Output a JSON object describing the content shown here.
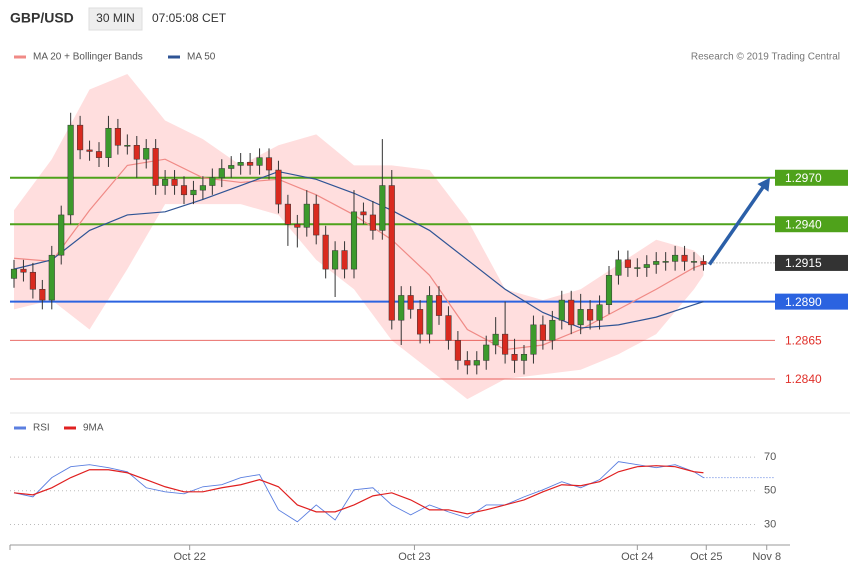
{
  "header": {
    "symbol": "GBP/USD",
    "interval": "30 MIN",
    "time": "07:05:08 CET"
  },
  "credit": "Research © 2019 Trading Central",
  "chart_data": [
    {
      "type": "candlestick",
      "up_color": "#3c9a2c",
      "down_color": "#d92a1f",
      "xlim": [
        0,
        81
      ],
      "ylim": [
        1.282,
        1.3059
      ],
      "candles": [
        [
          1.2905,
          1.2917,
          1.2899,
          1.2911
        ],
        [
          1.2911,
          1.2917,
          1.2903,
          1.2909
        ],
        [
          1.2909,
          1.2915,
          1.2892,
          1.2898
        ],
        [
          1.2898,
          1.2904,
          1.2885,
          1.2891
        ],
        [
          1.2891,
          1.2926,
          1.2885,
          1.292
        ],
        [
          1.292,
          1.2952,
          1.2914,
          1.2946
        ],
        [
          1.2946,
          1.3012,
          1.294,
          1.3004
        ],
        [
          1.3004,
          1.301,
          1.2982,
          1.2988
        ],
        [
          1.2988,
          1.2994,
          1.2981,
          1.2987
        ],
        [
          1.2987,
          1.2993,
          1.2977,
          1.2983
        ],
        [
          1.2983,
          1.301,
          1.2977,
          1.3002
        ],
        [
          1.3002,
          1.3008,
          1.2985,
          1.2991
        ],
        [
          1.2991,
          1.2998,
          1.2985,
          1.2991
        ],
        [
          1.2991,
          1.2997,
          1.297,
          1.2982
        ],
        [
          1.2982,
          1.2995,
          1.2976,
          1.2989
        ],
        [
          1.2989,
          1.2995,
          1.2959,
          1.2965
        ],
        [
          1.2965,
          1.2975,
          1.2959,
          1.2969
        ],
        [
          1.2969,
          1.2975,
          1.2959,
          1.2965
        ],
        [
          1.2965,
          1.2971,
          1.2953,
          1.2959
        ],
        [
          1.2959,
          1.2968,
          1.2953,
          1.2962
        ],
        [
          1.2962,
          1.2971,
          1.2956,
          1.2965
        ],
        [
          1.2965,
          1.2976,
          1.2959,
          1.297
        ],
        [
          1.297,
          1.2982,
          1.2964,
          1.2976
        ],
        [
          1.2976,
          1.2984,
          1.297,
          1.2978
        ],
        [
          1.2978,
          1.2986,
          1.2972,
          1.298
        ],
        [
          1.298,
          1.2986,
          1.2972,
          1.2978
        ],
        [
          1.2978,
          1.2989,
          1.2972,
          1.2983
        ],
        [
          1.2983,
          1.2989,
          1.2969,
          1.2975
        ],
        [
          1.2975,
          1.2981,
          1.2947,
          1.2953
        ],
        [
          1.2953,
          1.2959,
          1.2926,
          1.294
        ],
        [
          1.294,
          1.2946,
          1.2925,
          1.2938
        ],
        [
          1.2938,
          1.2962,
          1.2932,
          1.2953
        ],
        [
          1.2953,
          1.2959,
          1.2927,
          1.2933
        ],
        [
          1.2933,
          1.2939,
          1.2905,
          1.2911
        ],
        [
          1.2911,
          1.2929,
          1.2893,
          1.2923
        ],
        [
          1.2923,
          1.2929,
          1.2905,
          1.2911
        ],
        [
          1.2911,
          1.2962,
          1.2905,
          1.2948
        ],
        [
          1.2948,
          1.2954,
          1.294,
          1.2946
        ],
        [
          1.2946,
          1.2955,
          1.293,
          1.2936
        ],
        [
          1.2936,
          1.2995,
          1.293,
          1.2965
        ],
        [
          1.2965,
          1.2975,
          1.2872,
          1.2878
        ],
        [
          1.2878,
          1.29,
          1.2862,
          1.2894
        ],
        [
          1.2894,
          1.29,
          1.2879,
          1.2885
        ],
        [
          1.2885,
          1.2891,
          1.2863,
          1.2869
        ],
        [
          1.2869,
          1.29,
          1.2863,
          1.2894
        ],
        [
          1.2894,
          1.29,
          1.2875,
          1.2881
        ],
        [
          1.2881,
          1.2887,
          1.2859,
          1.2865
        ],
        [
          1.2865,
          1.2871,
          1.2846,
          1.2852
        ],
        [
          1.2852,
          1.2858,
          1.2843,
          1.2849
        ],
        [
          1.2849,
          1.2858,
          1.2843,
          1.2852
        ],
        [
          1.2852,
          1.2868,
          1.2846,
          1.2862
        ],
        [
          1.2862,
          1.288,
          1.2856,
          1.2869
        ],
        [
          1.2869,
          1.289,
          1.285,
          1.2856
        ],
        [
          1.2856,
          1.2866,
          1.2844,
          1.2852
        ],
        [
          1.2852,
          1.2862,
          1.2843,
          1.2856
        ],
        [
          1.2856,
          1.2881,
          1.285,
          1.2875
        ],
        [
          1.2875,
          1.2881,
          1.2859,
          1.2865
        ],
        [
          1.2865,
          1.2884,
          1.2859,
          1.2878
        ],
        [
          1.2878,
          1.2897,
          1.2872,
          1.2891
        ],
        [
          1.2891,
          1.2897,
          1.2869,
          1.2875
        ],
        [
          1.2875,
          1.2895,
          1.2869,
          1.2885
        ],
        [
          1.2885,
          1.2891,
          1.2872,
          1.2878
        ],
        [
          1.2878,
          1.2894,
          1.2872,
          1.2888
        ],
        [
          1.2888,
          1.2913,
          1.2882,
          1.2907
        ],
        [
          1.2907,
          1.2923,
          1.2901,
          1.2917
        ],
        [
          1.2917,
          1.2923,
          1.2906,
          1.2912
        ],
        [
          1.2912,
          1.2918,
          1.2906,
          1.2912
        ],
        [
          1.2912,
          1.292,
          1.2906,
          1.2914
        ],
        [
          1.2914,
          1.2922,
          1.2908,
          1.2916
        ],
        [
          1.2916,
          1.2922,
          1.291,
          1.2916
        ],
        [
          1.2916,
          1.2926,
          1.291,
          1.292
        ],
        [
          1.292,
          1.2926,
          1.291,
          1.2916
        ],
        [
          1.2916,
          1.2922,
          1.291,
          1.2916
        ],
        [
          1.2916,
          1.292,
          1.291,
          1.2914
        ]
      ],
      "series": [
        {
          "name": "MA 20 + Bollinger Bands",
          "color": "#f08a86",
          "band_color": "#ffdede",
          "x": [
            0,
            4,
            8,
            12,
            16,
            20,
            24,
            28,
            32,
            36,
            40,
            44,
            48,
            52,
            56,
            60,
            64,
            68,
            72,
            73
          ],
          "values": [
            1.2918,
            1.2916,
            1.2949,
            1.2978,
            1.2982,
            1.297,
            1.2967,
            1.2969,
            1.2959,
            1.2946,
            1.293,
            1.2907,
            1.2872,
            1.2859,
            1.2862,
            1.2872,
            1.2885,
            1.2898,
            1.2912,
            1.2914
          ],
          "upper": [
            1.2949,
            1.2982,
            1.3027,
            1.3037,
            1.3007,
            1.2995,
            1.2978,
            1.2991,
            1.2998,
            1.2978,
            1.2978,
            1.2975,
            1.2943,
            1.2898,
            1.2891,
            1.2898,
            1.2914,
            1.293,
            1.2923,
            1.2917
          ],
          "lower": [
            1.2885,
            1.2891,
            1.2872,
            1.2911,
            1.2953,
            1.2953,
            1.2953,
            1.2946,
            1.2917,
            1.2898,
            1.2865,
            1.2846,
            1.2827,
            1.284,
            1.2843,
            1.2846,
            1.2856,
            1.2869,
            1.2898,
            1.2907
          ]
        },
        {
          "name": "MA 50",
          "color": "#2f5495",
          "x": [
            0,
            4,
            8,
            12,
            16,
            20,
            24,
            28,
            32,
            36,
            40,
            44,
            48,
            52,
            56,
            60,
            64,
            68,
            72,
            73
          ],
          "values": [
            1.2911,
            1.2917,
            1.2936,
            1.2946,
            1.2948,
            1.2956,
            1.2965,
            1.2974,
            1.2969,
            1.296,
            1.2949,
            1.2936,
            1.2917,
            1.2898,
            1.2883,
            1.2873,
            1.2875,
            1.288,
            1.2888,
            1.289
          ]
        }
      ],
      "levels": [
        {
          "value": 1.297,
          "label": "1.2970",
          "color": "#4fa21b",
          "line": "solid",
          "tag": "box"
        },
        {
          "value": 1.294,
          "label": "1.2940",
          "color": "#4fa21b",
          "line": "solid",
          "tag": "box"
        },
        {
          "value": 1.2915,
          "label": "1.2915",
          "color": "#333333",
          "line": "dotted",
          "tag": "box"
        },
        {
          "value": 1.289,
          "label": "1.2890",
          "color": "#2b63e0",
          "line": "solid",
          "tag": "box"
        },
        {
          "value": 1.2865,
          "label": "1.2865",
          "color": "#e0302a",
          "line": "thin",
          "tag": "text"
        },
        {
          "value": 1.284,
          "label": "1.2840",
          "color": "#e0302a",
          "line": "thin",
          "tag": "text"
        }
      ]
    },
    {
      "type": "line",
      "xlim": [
        0,
        81
      ],
      "ylim": [
        22,
        92
      ],
      "yticks": [
        30,
        50,
        70
      ],
      "grid": true,
      "xticks": [
        {
          "value": 18.6,
          "label": "Oct 22"
        },
        {
          "value": 42.4,
          "label": "Oct 23"
        },
        {
          "value": 66,
          "label": "Oct 24"
        },
        {
          "value": 73.3,
          "label": "Oct 25"
        },
        {
          "value": 79.7,
          "label": "Nov 8"
        }
      ],
      "x": [
        0,
        2,
        4,
        6,
        8,
        10,
        12,
        14,
        16,
        18,
        20,
        22,
        24,
        26,
        28,
        30,
        32,
        34,
        36,
        38,
        40,
        42,
        44,
        46,
        48,
        50,
        52,
        54,
        56,
        58,
        60,
        62,
        64,
        66,
        68,
        70,
        72,
        73
      ],
      "series": [
        {
          "name": "RSI",
          "color": "#5b7fe0",
          "values": [
            48.8,
            46.4,
            57.8,
            64.3,
            65.5,
            63.7,
            61.3,
            51.8,
            49.4,
            48.2,
            52.4,
            53.6,
            57.8,
            59.6,
            38.7,
            31.6,
            41.6,
            32.7,
            50.6,
            51.8,
            41.6,
            35.7,
            41.6,
            37.5,
            33.9,
            41.6,
            41.6,
            46.4,
            50.6,
            55.4,
            51.8,
            56.6,
            67.3,
            65.5,
            63.7,
            65.5,
            61.3,
            57.8
          ]
        },
        {
          "name": "9MA",
          "color": "#e02020",
          "values": [
            48.8,
            47.6,
            51.8,
            57.8,
            62.5,
            62.5,
            60.7,
            56.6,
            52.4,
            49.4,
            49.4,
            51.8,
            53.6,
            56.6,
            52.4,
            41.6,
            37.5,
            37.5,
            41.6,
            47,
            48.8,
            44.6,
            38.7,
            38.7,
            36.3,
            38.7,
            41.6,
            44.6,
            49.4,
            53.6,
            53,
            55.4,
            61.3,
            64.3,
            64.9,
            64.3,
            61.3,
            60.7
          ]
        }
      ]
    }
  ]
}
